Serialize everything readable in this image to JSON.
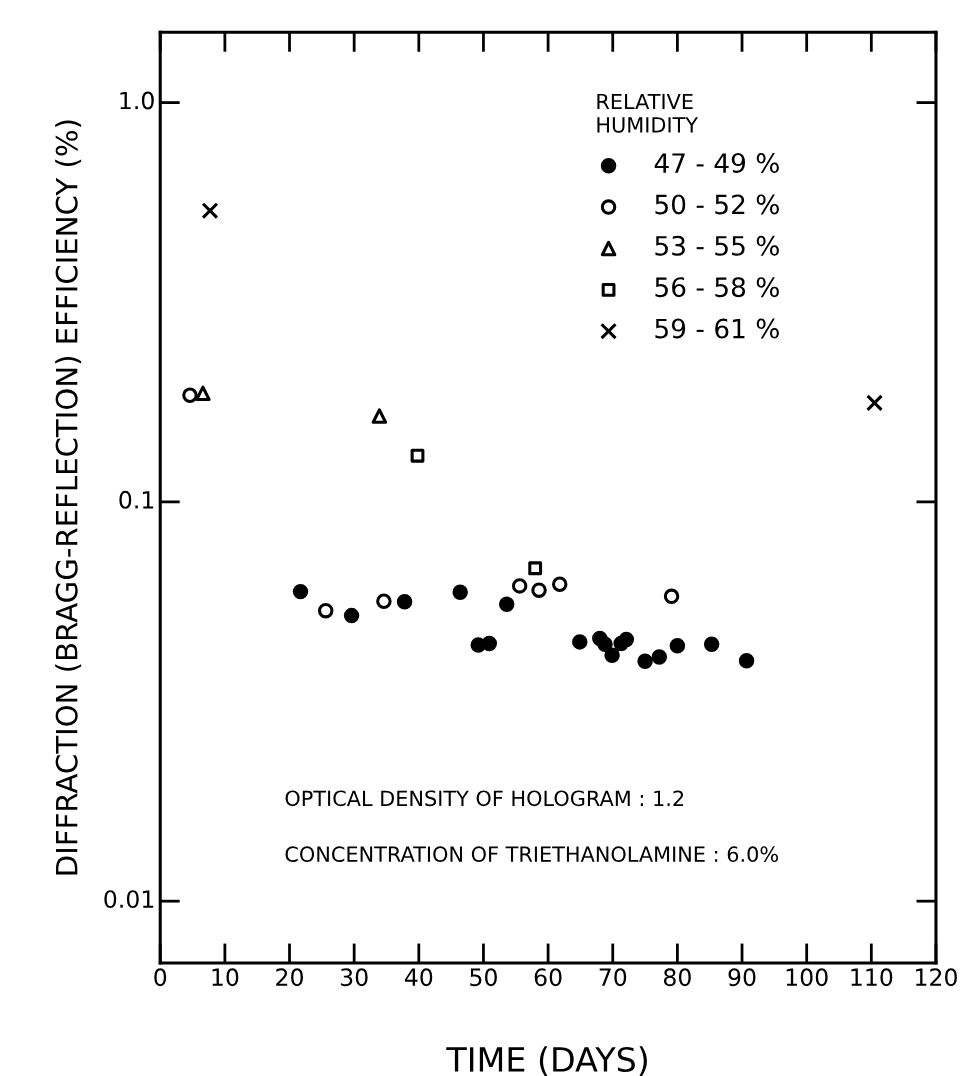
{
  "chart_data": {
    "type": "scatter",
    "xlabel": "TIME (DAYS)",
    "ylabel": "DIFFRACTION (BRAGG-REFLECTION) EFFICIENCY (%)",
    "legend_title": "RELATIVE\nHUMIDITY",
    "legend": "top right",
    "log": "y",
    "grid": false,
    "xlim": [
      0,
      120
    ],
    "xticks": [
      0,
      10,
      20,
      30,
      40,
      50,
      60,
      70,
      80,
      90,
      100,
      110,
      120
    ],
    "ylim": [
      0.007,
      1.5
    ],
    "yticks": [
      {
        "value": 0.01,
        "label": "0.01"
      },
      {
        "value": 0.1,
        "label": "0.1"
      },
      {
        "value": 1,
        "label": "1.0"
      }
    ],
    "series": [
      {
        "name": "47 - 49 %",
        "color": "#000000",
        "marker": "circle",
        "x": [
          21.7,
          29.6,
          37.8,
          46.4,
          49.2,
          50.9,
          53.6,
          64.9,
          68.0,
          68.8,
          69.9,
          71.3,
          72.1,
          75.0,
          77.2,
          80.0,
          85.3,
          90.7
        ],
        "values": [
          0.0596,
          0.0519,
          0.0562,
          0.0594,
          0.0438,
          0.0442,
          0.0554,
          0.0446,
          0.0455,
          0.044,
          0.0413,
          0.0442,
          0.0452,
          0.0399,
          0.0409,
          0.0436,
          0.044,
          0.04
        ]
      },
      {
        "name": "50 - 52 %",
        "color": "#ffffff",
        "marker": "circle",
        "x": [
          4.6,
          25.6,
          34.6,
          55.6,
          58.6,
          61.8,
          79.1
        ],
        "values": [
          0.185,
          0.0534,
          0.0564,
          0.0616,
          0.0601,
          0.0622,
          0.058
        ]
      },
      {
        "name": "53 - 55 %",
        "color": "#ffffff",
        "marker": "triangle",
        "x": [
          6.6,
          33.9
        ],
        "values": [
          0.187,
          0.164
        ]
      },
      {
        "name": "56 - 58 %",
        "color": "#ffffff",
        "marker": "square",
        "x": [
          39.8,
          58.0
        ],
        "values": [
          0.1305,
          0.0682
        ]
      },
      {
        "name": "59 - 61 %",
        "color": "#000000",
        "marker": "cross",
        "x": [
          7.7,
          110.5
        ],
        "values": [
          0.536,
          0.177
        ]
      }
    ],
    "annotations": [
      "OPTICAL DENSITY OF HOLOGRAM : 1.2",
      "CONCENTRATION OF TRIETHANOLAMINE : 6.0%"
    ]
  }
}
